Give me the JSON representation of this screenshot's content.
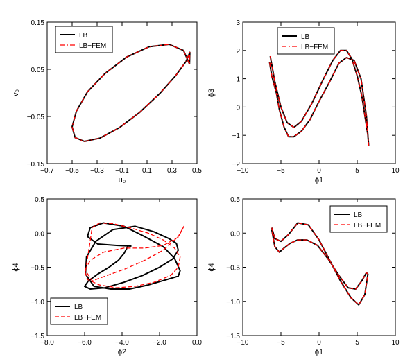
{
  "chart_data": [
    {
      "type": "line",
      "xlabel": "u₀",
      "ylabel": "v₀",
      "xlim": [
        -0.7,
        0.5
      ],
      "ylim": [
        -0.15,
        0.15
      ],
      "xticks": [
        "−0.7",
        "−0.5",
        "−0.3",
        "−0.1",
        "0.1",
        "0.3",
        "0.5"
      ],
      "yticks": [
        "−0.15",
        "−0.05",
        "0.05",
        "0.15"
      ],
      "xtick_values": [
        -0.7,
        -0.5,
        -0.3,
        -0.1,
        0.1,
        0.3,
        0.5
      ],
      "ytick_values": [
        -0.15,
        -0.05,
        0.05,
        0.15
      ],
      "legend": {
        "position": "top-left",
        "entries": [
          "LB",
          "LB−FEM"
        ]
      },
      "series": [
        {
          "name": "LB",
          "color": "#000000",
          "style": "solid",
          "x": [
            0.44,
            0.392,
            0.277,
            0.117,
            -0.064,
            -0.237,
            -0.378,
            -0.466,
            -0.5,
            -0.476,
            -0.401,
            -0.277,
            -0.123,
            0.042,
            0.199,
            0.328,
            0.413,
            0.443,
            0.44
          ],
          "y": [
            0.061,
            0.09,
            0.103,
            0.098,
            0.076,
            0.041,
            0.002,
            -0.039,
            -0.072,
            -0.095,
            -0.103,
            -0.096,
            -0.074,
            -0.041,
            -0.002,
            0.036,
            0.067,
            0.086,
            0.061
          ]
        },
        {
          "name": "LB−FEM",
          "color": "#ff0000",
          "style": "dashdot",
          "x": [
            0.44,
            0.392,
            0.277,
            0.117,
            -0.064,
            -0.237,
            -0.378,
            -0.466,
            -0.5,
            -0.476,
            -0.401,
            -0.277,
            -0.123,
            0.042,
            0.199,
            0.328,
            0.413,
            0.443,
            0.44
          ],
          "y": [
            0.061,
            0.09,
            0.103,
            0.098,
            0.076,
            0.041,
            0.002,
            -0.039,
            -0.072,
            -0.095,
            -0.103,
            -0.096,
            -0.074,
            -0.041,
            -0.002,
            0.036,
            0.067,
            0.086,
            0.061
          ]
        }
      ]
    },
    {
      "type": "line",
      "xlabel": "ϕ1",
      "ylabel": "ϕ3",
      "xlim": [
        -10,
        10
      ],
      "ylim": [
        -2,
        3
      ],
      "xticks": [
        "−10",
        "−5",
        "0",
        "5",
        "10"
      ],
      "yticks": [
        "−2",
        "−1",
        "0",
        "1",
        "2",
        "3"
      ],
      "xtick_values": [
        -10,
        -5,
        0,
        5,
        10
      ],
      "ytick_values": [
        -2,
        -1,
        0,
        1,
        2,
        3
      ],
      "legend": {
        "position": "top-left",
        "entries": [
          "LB",
          "LB−FEM"
        ]
      },
      "series": [
        {
          "name": "LB",
          "color": "#000000",
          "style": "solid",
          "x": [
            -6.4,
            -5.8,
            -5.0,
            -4.2,
            -3.3,
            -2.3,
            -1.0,
            0.5,
            1.8,
            2.8,
            3.6,
            4.3,
            5.0,
            5.6,
            6.0,
            6.4,
            6.5,
            6.2,
            5.5,
            4.6,
            3.6,
            2.6,
            1.4,
            0.0,
            -1.2,
            -2.3,
            -3.3,
            -4.0,
            -4.6,
            -5.2,
            -5.6,
            -6.2,
            -6.5
          ],
          "y": [
            1.8,
            0.9,
            0.0,
            -0.55,
            -0.72,
            -0.5,
            0.1,
            0.95,
            1.65,
            2.0,
            2.0,
            1.7,
            1.1,
            0.4,
            -0.3,
            -1.0,
            -1.35,
            -0.3,
            1.0,
            1.65,
            1.75,
            1.55,
            0.9,
            0.2,
            -0.45,
            -0.85,
            -1.05,
            -1.05,
            -0.7,
            -0.1,
            0.5,
            1.1,
            1.6
          ]
        },
        {
          "name": "LB−FEM",
          "color": "#ff0000",
          "style": "dashdot",
          "x": [
            -6.4,
            -5.8,
            -5.0,
            -4.2,
            -3.3,
            -2.3,
            -1.0,
            0.5,
            1.8,
            2.8,
            3.6,
            4.3,
            5.0,
            5.6,
            6.0,
            6.4,
            6.5,
            6.2,
            5.5,
            4.6,
            3.6,
            2.6,
            1.4,
            0.0,
            -1.2,
            -2.3,
            -3.3,
            -4.0,
            -4.6,
            -5.2,
            -5.6,
            -6.2,
            -6.5
          ],
          "y": [
            1.8,
            0.9,
            0.0,
            -0.55,
            -0.72,
            -0.5,
            0.1,
            0.95,
            1.65,
            2.0,
            2.0,
            1.7,
            1.1,
            0.4,
            -0.3,
            -1.0,
            -1.35,
            -0.3,
            1.0,
            1.65,
            1.75,
            1.55,
            0.9,
            0.2,
            -0.45,
            -0.85,
            -1.05,
            -1.05,
            -0.7,
            -0.1,
            0.5,
            1.1,
            1.6
          ]
        }
      ]
    },
    {
      "type": "line",
      "xlabel": "ϕ2",
      "ylabel": "ϕ4",
      "xlim": [
        -8,
        0
      ],
      "ylim": [
        -1.5,
        0.5
      ],
      "xticks": [
        "−8.0",
        "−6.0",
        "−4.0",
        "−2.0",
        "0.0"
      ],
      "yticks": [
        "−1.5",
        "−1.0",
        "−0.5",
        "0.0",
        "0.5"
      ],
      "xtick_values": [
        -8,
        -6,
        -4,
        -2,
        0
      ],
      "ytick_values": [
        -1.5,
        -1.0,
        -0.5,
        0.0,
        0.5
      ],
      "legend": {
        "position": "bottom-left",
        "entries": [
          "LB",
          "LB−FEM"
        ]
      },
      "series": [
        {
          "name": "LB",
          "color": "#000000",
          "style": "solid",
          "x": [
            -3.5,
            -4.3,
            -5.3,
            -5.85,
            -5.7,
            -5.0,
            -3.9,
            -2.8,
            -1.8,
            -1.2,
            -0.9,
            -1.0,
            -1.6,
            -2.6,
            -3.6,
            -4.6,
            -5.5,
            -5.95,
            -5.9,
            -5.4,
            -4.5,
            -3.3,
            -2.3,
            -1.5,
            -1.1,
            -1.0,
            -1.3,
            -2.0,
            -2.9,
            -3.9,
            -4.9,
            -5.7,
            -6.0,
            -5.8,
            -5.3,
            -4.7,
            -4.2,
            -3.9,
            -3.7
          ],
          "y": [
            -0.19,
            -0.18,
            -0.16,
            -0.05,
            0.08,
            0.15,
            0.1,
            -0.05,
            -0.2,
            -0.37,
            -0.55,
            -0.63,
            -0.68,
            -0.76,
            -0.82,
            -0.82,
            -0.78,
            -0.6,
            -0.35,
            -0.12,
            0.05,
            0.1,
            0.02,
            -0.08,
            -0.15,
            -0.25,
            -0.38,
            -0.5,
            -0.62,
            -0.72,
            -0.8,
            -0.82,
            -0.78,
            -0.7,
            -0.6,
            -0.5,
            -0.4,
            -0.3,
            -0.2
          ]
        },
        {
          "name": "LB−FEM",
          "color": "#ff0000",
          "style": "dashed",
          "x": [
            -5.75,
            -5.6,
            -5.2,
            -4.5,
            -3.6,
            -2.6,
            -1.8,
            -1.2,
            -0.9,
            -1.0,
            -1.4,
            -2.3,
            -3.3,
            -4.3,
            -5.2,
            -5.85,
            -6.0,
            -5.7,
            -5.0,
            -3.9,
            -2.8,
            -1.8,
            -1.0,
            -0.7,
            -1.0,
            -1.8,
            -2.8,
            -3.8,
            -4.8,
            -5.6,
            -5.95,
            -5.75
          ],
          "y": [
            -0.2,
            0.08,
            0.15,
            0.14,
            0.08,
            0.0,
            -0.1,
            -0.22,
            -0.35,
            -0.5,
            -0.62,
            -0.72,
            -0.78,
            -0.8,
            -0.76,
            -0.68,
            -0.55,
            -0.4,
            -0.28,
            -0.22,
            -0.22,
            -0.18,
            -0.06,
            0.1,
            -0.05,
            -0.25,
            -0.4,
            -0.52,
            -0.62,
            -0.7,
            -0.55,
            -0.2
          ]
        }
      ]
    },
    {
      "type": "line",
      "xlabel": "ϕ1",
      "ylabel": "ϕ4",
      "xlim": [
        -10,
        10
      ],
      "ylim": [
        -1.5,
        0.5
      ],
      "xticks": [
        "−10",
        "−5",
        "0",
        "5",
        "10"
      ],
      "yticks": [
        "−1.5",
        "−1.0",
        "−0.5",
        "0.0",
        "0.5"
      ],
      "xtick_values": [
        -10,
        -5,
        0,
        5,
        10
      ],
      "ytick_values": [
        -1.5,
        -1.0,
        -0.5,
        0.0,
        0.5
      ],
      "legend": {
        "position": "top-right",
        "entries": [
          "LB",
          "LB−FEM"
        ]
      },
      "series": [
        {
          "name": "LB",
          "color": "#000000",
          "style": "solid",
          "x": [
            -6.2,
            -5.8,
            -5.0,
            -4.0,
            -2.8,
            -1.4,
            0.0,
            1.4,
            2.8,
            4.2,
            5.2,
            6.0,
            6.4,
            6.2,
            5.6,
            4.8,
            3.8,
            2.6,
            1.2,
            -0.2,
            -1.6,
            -2.8,
            -3.8,
            -4.6,
            -5.2,
            -5.8,
            -6.2
          ],
          "y": [
            0.08,
            -0.08,
            -0.12,
            -0.02,
            0.15,
            0.12,
            -0.1,
            -0.4,
            -0.7,
            -0.95,
            -1.05,
            -0.9,
            -0.6,
            -0.58,
            -0.7,
            -0.82,
            -0.8,
            -0.62,
            -0.38,
            -0.18,
            -0.1,
            -0.1,
            -0.15,
            -0.22,
            -0.28,
            -0.2,
            0.05
          ]
        },
        {
          "name": "LB−FEM",
          "color": "#ff0000",
          "style": "dashed",
          "x": [
            -6.2,
            -5.8,
            -5.0,
            -4.0,
            -2.8,
            -1.4,
            0.0,
            1.4,
            2.8,
            4.2,
            5.2,
            6.0,
            6.4,
            6.2,
            5.6,
            4.8,
            3.8,
            2.6,
            1.2,
            -0.2,
            -1.6,
            -2.8,
            -3.8,
            -4.6,
            -5.2,
            -5.8,
            -6.2
          ],
          "y": [
            0.08,
            -0.08,
            -0.12,
            -0.02,
            0.15,
            0.12,
            -0.1,
            -0.4,
            -0.7,
            -0.95,
            -1.05,
            -0.9,
            -0.6,
            -0.58,
            -0.7,
            -0.82,
            -0.8,
            -0.62,
            -0.38,
            -0.18,
            -0.1,
            -0.1,
            -0.15,
            -0.22,
            -0.28,
            -0.2,
            0.05
          ]
        }
      ]
    }
  ]
}
